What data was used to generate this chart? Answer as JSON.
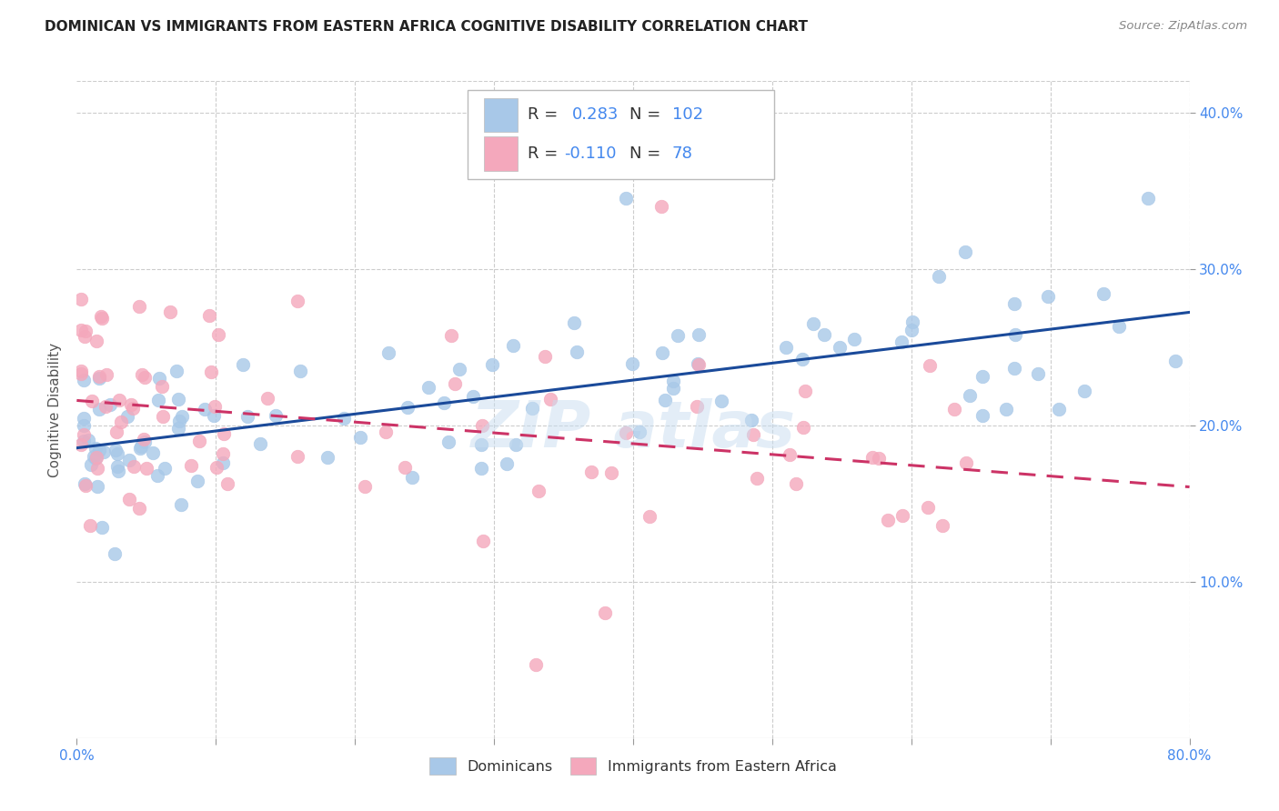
{
  "title": "DOMINICAN VS IMMIGRANTS FROM EASTERN AFRICA COGNITIVE DISABILITY CORRELATION CHART",
  "source": "Source: ZipAtlas.com",
  "ylabel": "Cognitive Disability",
  "xlim": [
    0.0,
    0.8
  ],
  "ylim": [
    0.0,
    0.42
  ],
  "blue_color": "#a8c8e8",
  "pink_color": "#f4a8bc",
  "line_blue": "#1a4a9a",
  "line_pink": "#cc3366",
  "blue_r": 0.283,
  "pink_r": -0.11,
  "blue_n": 102,
  "pink_n": 78,
  "background_color": "#ffffff",
  "grid_color": "#cccccc",
  "title_color": "#222222",
  "axis_color": "#4488ee",
  "blue_line_start_y": 0.19,
  "blue_line_end_y": 0.252,
  "pink_line_start_y": 0.208,
  "pink_line_end_y": 0.163
}
